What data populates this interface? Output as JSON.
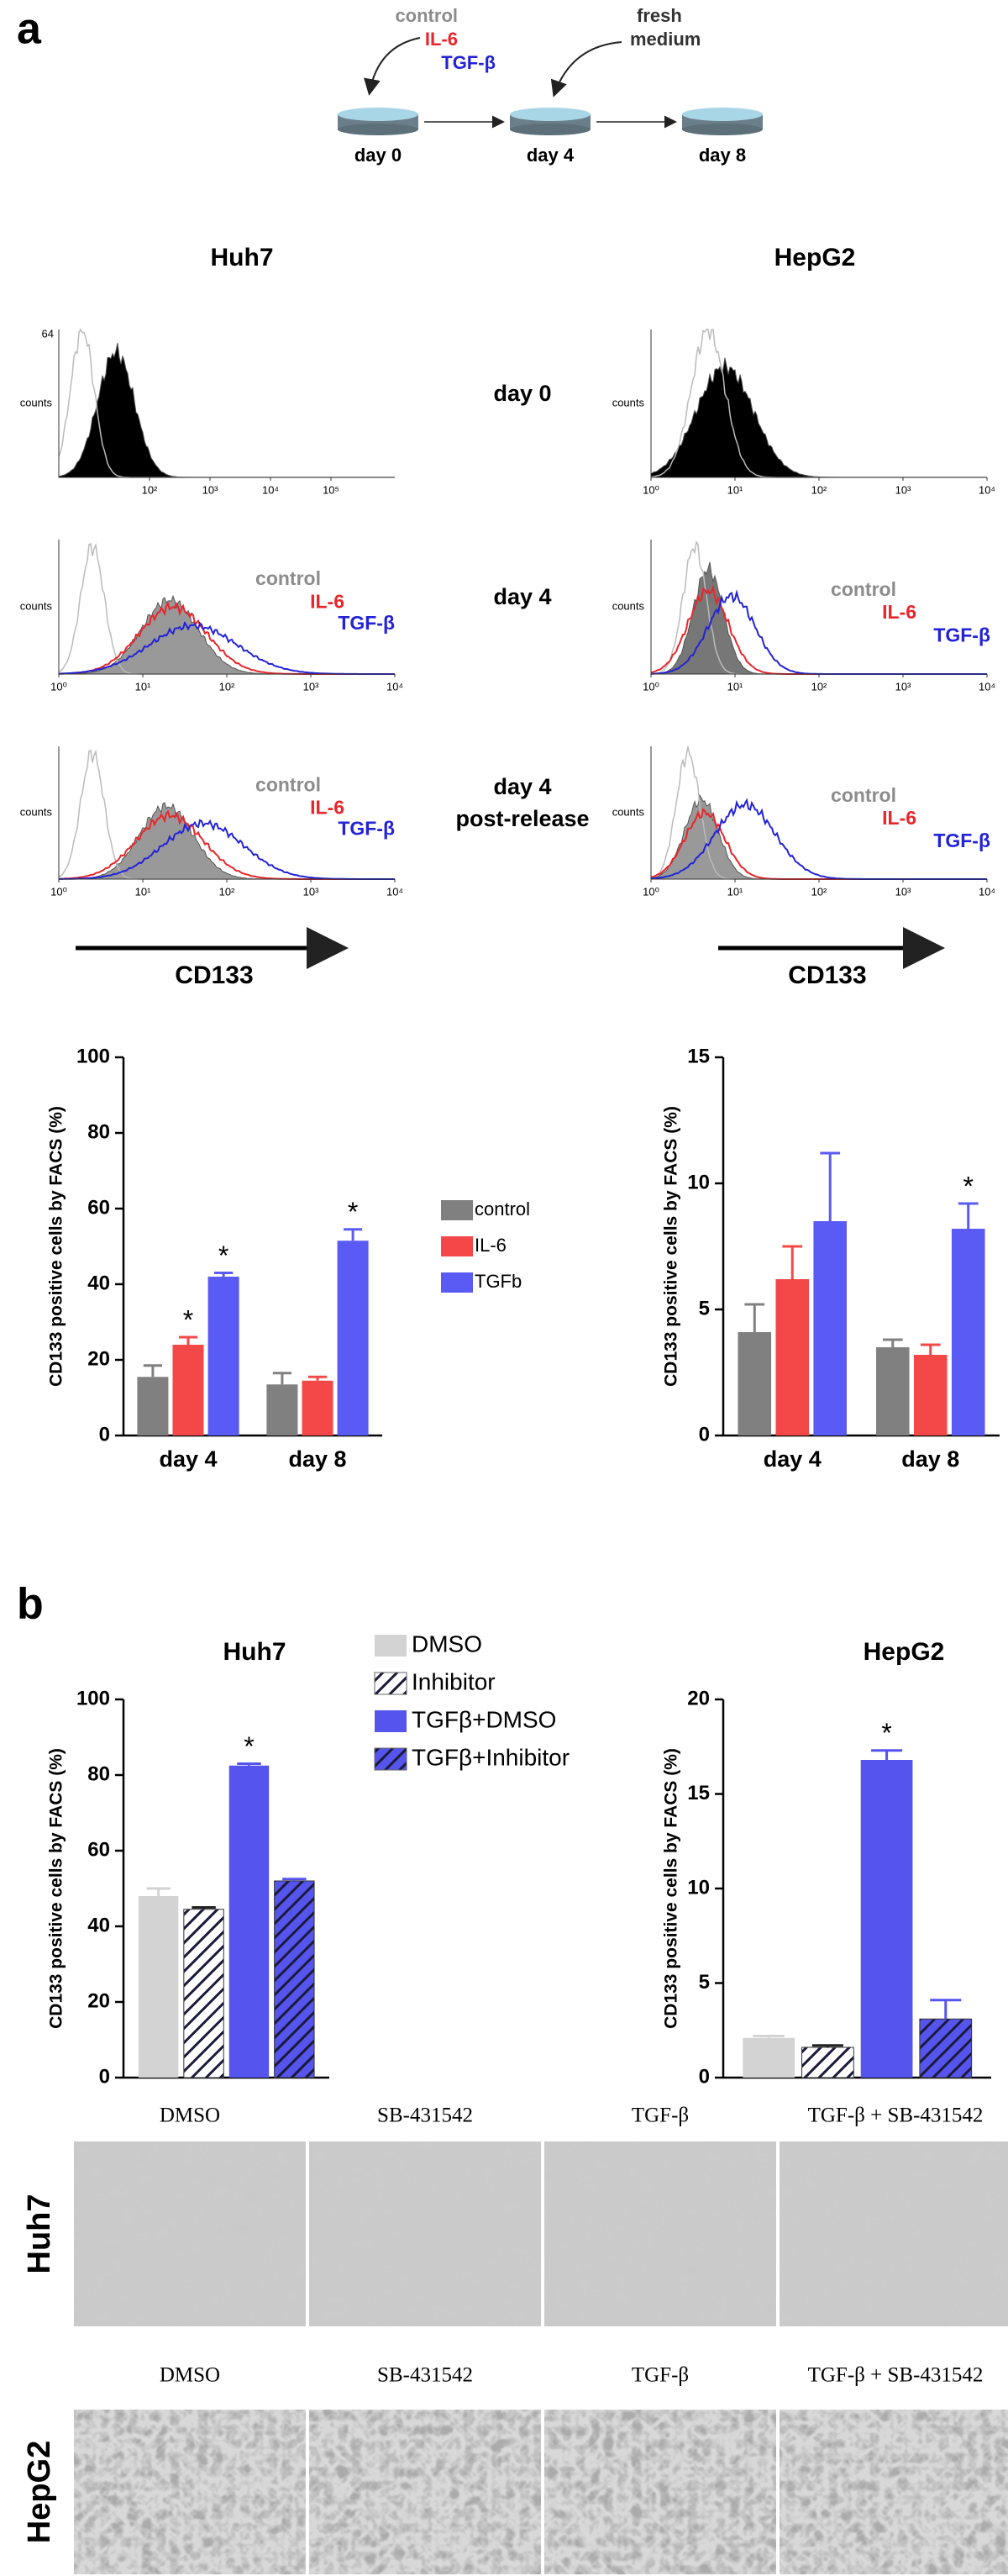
{
  "panel_labels": [
    "a",
    "b"
  ],
  "schematic": {
    "treatments": [
      {
        "label": "control",
        "color": "#8c8c8c"
      },
      {
        "label": "IL-6",
        "color": "#e8262b"
      },
      {
        "label": "TGF-β",
        "color": "#2323d6"
      }
    ],
    "medium": [
      "fresh",
      "medium"
    ],
    "days": [
      "day 0",
      "day 4",
      "day 8"
    ]
  },
  "histograms": {
    "y_label": "counts",
    "x_label": "CD133",
    "curve_colors": [
      "#8c8c8c",
      "#e8262b",
      "#2323d6"
    ],
    "row_labels": [
      [
        "day 0"
      ],
      [
        "day 4"
      ],
      [
        "day 4",
        "post-release"
      ]
    ],
    "columns": [
      {
        "title": "Huh7",
        "panels": [
          {
            "xticks": [
              "10²",
              "10³",
              "10⁴",
              "10⁵"
            ],
            "ymax": "64"
          },
          {
            "xticks": [
              "10⁰",
              "10¹",
              "10²",
              "10³",
              "10⁴"
            ],
            "legend": [
              "control",
              "IL-6",
              "TGF-β"
            ]
          },
          {
            "xticks": [
              "10⁰",
              "10¹",
              "10²",
              "10³",
              "10⁴"
            ],
            "legend": [
              "control",
              "IL-6",
              "TGF-β"
            ]
          }
        ]
      },
      {
        "title": "HepG2",
        "panels": [
          {
            "xticks": [
              "10⁰",
              "10¹",
              "10²",
              "10³",
              "10⁴"
            ]
          },
          {
            "xticks": [
              "10⁰",
              "10¹",
              "10²",
              "10³",
              "10⁴"
            ],
            "legend": [
              "control",
              "IL-6",
              "TGF-β"
            ]
          },
          {
            "xticks": [
              "10⁰",
              "10¹",
              "10²",
              "10³",
              "10⁴"
            ],
            "legend": [
              "control",
              "IL-6",
              "TGF-β"
            ]
          }
        ]
      }
    ]
  },
  "chart_data": [
    {
      "type": "bar",
      "y_label": "CD133 positive cells by FACS (%)",
      "categories": [
        "day 4",
        "day 8"
      ],
      "ylim": [
        0,
        100
      ],
      "yticks": [
        0,
        20,
        40,
        60,
        80,
        100
      ],
      "legend": true,
      "significance_marker": "*",
      "series": [
        {
          "name": "control",
          "color": "#808080",
          "values": [
            15.5,
            13.5
          ],
          "errors": [
            3,
            3
          ],
          "significant": [
            false,
            false
          ]
        },
        {
          "name": "IL-6",
          "color": "#f44848",
          "values": [
            24,
            14.5
          ],
          "errors": [
            2,
            1
          ],
          "significant": [
            true,
            false
          ]
        },
        {
          "name": "TGFb",
          "color": "#5a5af5",
          "values": [
            42,
            51.5
          ],
          "errors": [
            1,
            3
          ],
          "significant": [
            true,
            true
          ]
        }
      ]
    },
    {
      "type": "bar",
      "y_label": "CD133 positive cells by FACS (%)",
      "categories": [
        "day 4",
        "day 8"
      ],
      "ylim": [
        0,
        15
      ],
      "yticks": [
        0,
        5,
        10,
        15
      ],
      "significance_marker": "*",
      "series": [
        {
          "color": "#808080",
          "values": [
            4.1,
            3.5
          ],
          "errors": [
            1.1,
            0.3
          ],
          "significant": [
            false,
            false
          ]
        },
        {
          "color": "#f44848",
          "values": [
            6.2,
            3.2
          ],
          "errors": [
            1.3,
            0.4
          ],
          "significant": [
            false,
            false
          ]
        },
        {
          "color": "#5a5af5",
          "values": [
            8.5,
            8.2
          ],
          "errors": [
            2.7,
            1
          ],
          "significant": [
            false,
            true
          ]
        }
      ]
    },
    {
      "type": "bar",
      "title": "Huh7",
      "y_label": "CD133 positive cells by FACS (%)",
      "ylim": [
        0,
        100
      ],
      "yticks": [
        0,
        20,
        40,
        60,
        80,
        100
      ],
      "legend": true,
      "significance_marker": "*",
      "series": [
        {
          "name": "DMSO",
          "color": "#d3d3d3",
          "values": [
            48
          ],
          "errors": [
            2
          ],
          "significant": [
            false
          ]
        },
        {
          "name": "Inhibitor",
          "color": "#ffffff",
          "hatch": true,
          "values": [
            44.5
          ],
          "errors": [
            0.5
          ],
          "significant": [
            false
          ]
        },
        {
          "name": "TGFβ+DMSO",
          "color": "#5555ee",
          "values": [
            82.5
          ],
          "errors": [
            0.5
          ],
          "significant": [
            true
          ]
        },
        {
          "name": "TGFβ+Inhibitor",
          "color": "#5555ee",
          "hatch": true,
          "values": [
            52
          ],
          "errors": [
            0.5
          ],
          "significant": [
            false
          ]
        }
      ]
    },
    {
      "type": "bar",
      "title": "HepG2",
      "y_label": "CD133 positive cells by FACS (%)",
      "ylim": [
        0,
        20
      ],
      "yticks": [
        0,
        5,
        10,
        15,
        20
      ],
      "significance_marker": "*",
      "series": [
        {
          "color": "#d3d3d3",
          "values": [
            2.1
          ],
          "errors": [
            0.1
          ],
          "significant": [
            false
          ]
        },
        {
          "color": "#ffffff",
          "hatch": true,
          "values": [
            1.6
          ],
          "errors": [
            0.1
          ],
          "significant": [
            false
          ]
        },
        {
          "color": "#5555ee",
          "values": [
            16.8
          ],
          "errors": [
            0.5
          ],
          "significant": [
            true
          ]
        },
        {
          "color": "#5555ee",
          "hatch": true,
          "values": [
            3.1
          ],
          "errors": [
            1
          ],
          "significant": [
            false
          ]
        }
      ]
    }
  ],
  "micrographs": {
    "rows": [
      {
        "label": "Huh7",
        "images": [
          "DMSO",
          "SB-431542",
          "TGF-β",
          "TGF-β + SB-431542"
        ]
      },
      {
        "label": "HepG2",
        "images": [
          "DMSO",
          "SB-431542",
          "TGF-β",
          "TGF-β + SB-431542"
        ]
      }
    ]
  }
}
